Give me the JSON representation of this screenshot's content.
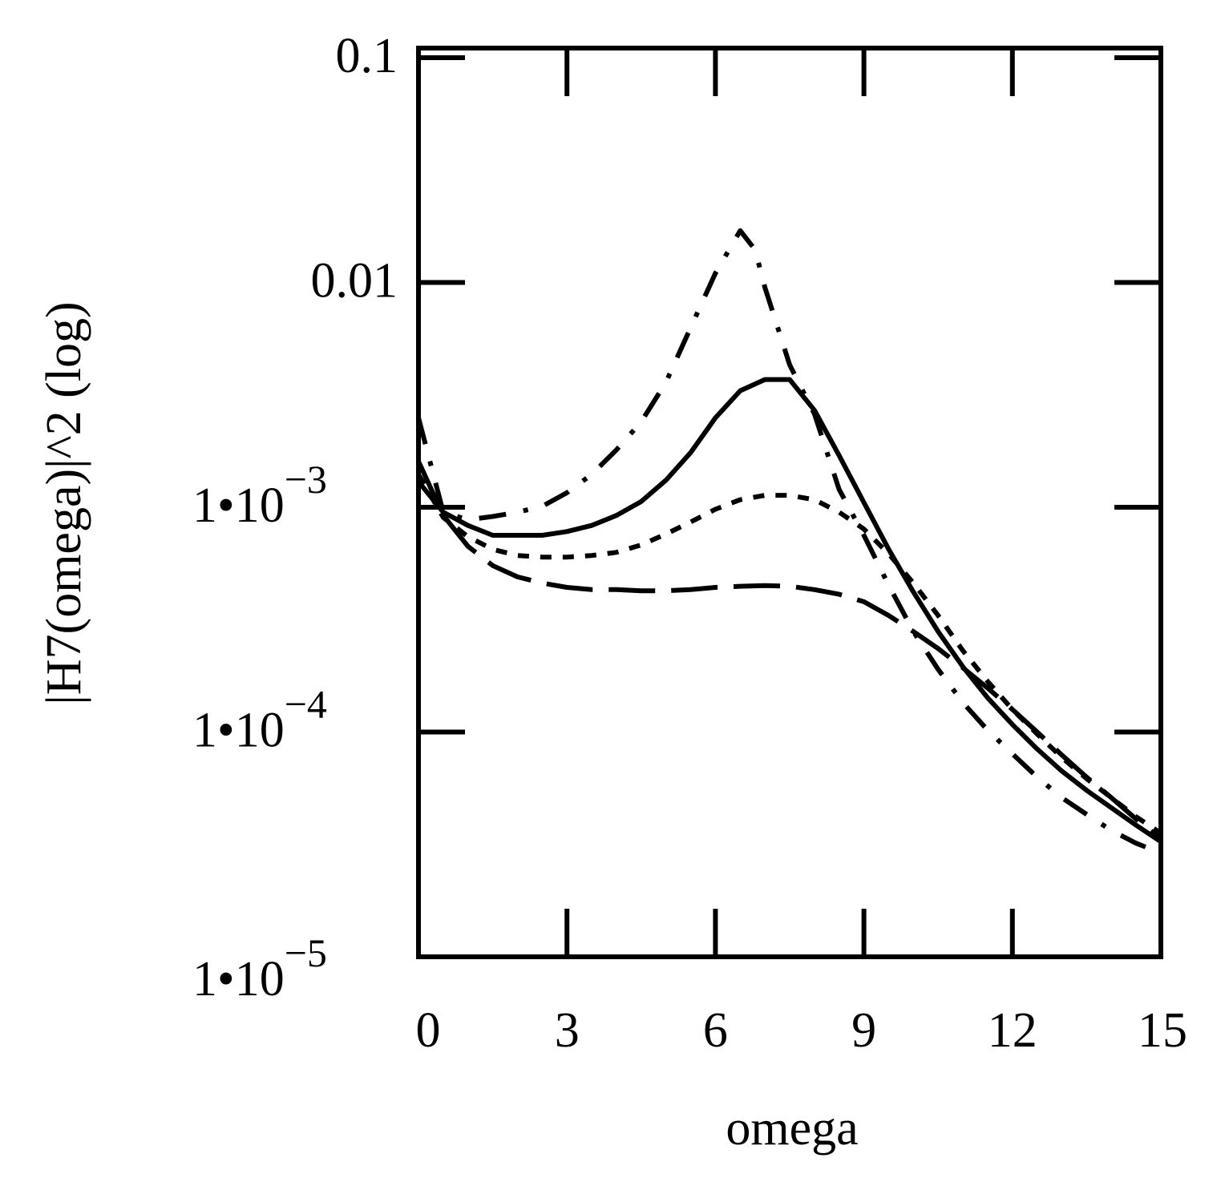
{
  "chart_data": {
    "type": "line",
    "title": "",
    "xlabel": "omega",
    "ylabel": "|H7(omega)|^2 (log)",
    "xlim": [
      0,
      15
    ],
    "ylim": [
      1e-05,
      0.1
    ],
    "yscale": "log",
    "grid": false,
    "legend": "none",
    "x_ticks": [
      {
        "value": 0,
        "label": "0"
      },
      {
        "value": 3,
        "label": "3"
      },
      {
        "value": 6,
        "label": "6"
      },
      {
        "value": 9,
        "label": "9"
      },
      {
        "value": 12,
        "label": "12"
      },
      {
        "value": 15,
        "label": "15"
      }
    ],
    "y_ticks": [
      {
        "value": 0.1,
        "label": "0.1"
      },
      {
        "value": 0.01,
        "label": "0.01"
      },
      {
        "value": 0.001,
        "mantissa": "1•10",
        "exponent": "−3"
      },
      {
        "value": 0.0001,
        "mantissa": "1•10",
        "exponent": "−4"
      },
      {
        "value": 1e-05,
        "mantissa": "1•10",
        "exponent": "−5"
      }
    ],
    "series": [
      {
        "name": "solid",
        "style": "solid",
        "x": [
          0,
          0.5,
          1.0,
          1.5,
          2.0,
          2.5,
          3.0,
          3.5,
          4.0,
          4.5,
          5.0,
          5.5,
          6.0,
          6.5,
          7.0,
          7.5,
          8.0,
          8.5,
          9.0,
          9.5,
          10.0,
          10.5,
          11.0,
          11.5,
          12.0,
          12.5,
          13.0,
          13.5,
          14.0,
          14.5,
          15.0
        ],
        "values": [
          0.0013,
          0.00095,
          0.00083,
          0.00075,
          0.00075,
          0.00075,
          0.00078,
          0.00083,
          0.00092,
          0.00106,
          0.00132,
          0.00175,
          0.0025,
          0.0033,
          0.0037,
          0.0037,
          0.0027,
          0.0017,
          0.00105,
          0.00065,
          0.00042,
          0.00028,
          0.000195,
          0.000142,
          0.000108,
          8.4e-05,
          6.7e-05,
          5.5e-05,
          4.6e-05,
          3.85e-05,
          3.25e-05
        ]
      },
      {
        "name": "dash-dot",
        "style": "dashdot",
        "x": [
          0,
          0.5,
          1.0,
          1.5,
          2.0,
          2.5,
          3.0,
          3.5,
          4.0,
          4.5,
          5.0,
          5.5,
          6.0,
          6.5,
          6.8,
          7.0,
          7.5,
          8.0,
          8.5,
          9.0,
          9.5,
          10.0,
          10.5,
          11.0,
          11.5,
          12.0,
          12.5,
          13.0,
          13.5,
          14.0,
          14.5,
          15.0
        ],
        "values": [
          0.0025,
          0.00095,
          0.00088,
          0.00091,
          0.00095,
          0.00101,
          0.00116,
          0.0014,
          0.0018,
          0.0024,
          0.0036,
          0.0063,
          0.011,
          0.017,
          0.014,
          0.0095,
          0.0043,
          0.0026,
          0.0012,
          0.00075,
          0.00045,
          0.00028,
          0.00019,
          0.000135,
          0.000102,
          8e-05,
          6.3e-05,
          5.1e-05,
          4.3e-05,
          3.65e-05,
          3.2e-05,
          2.9e-05
        ]
      },
      {
        "name": "short-dash",
        "style": "dotted",
        "x": [
          0,
          0.5,
          1.0,
          1.5,
          2.0,
          2.5,
          3.0,
          3.5,
          4.0,
          4.5,
          5.0,
          5.5,
          6.0,
          6.5,
          7.0,
          7.5,
          8.0,
          8.5,
          9.0,
          9.5,
          10.0,
          10.5,
          11.0,
          11.5,
          12.0,
          12.5,
          13.0,
          13.5,
          14.0,
          14.5,
          15.0
        ],
        "values": [
          0.0014,
          0.0009,
          0.00074,
          0.00065,
          0.00061,
          0.0006,
          0.0006,
          0.00061,
          0.00063,
          0.00068,
          0.00076,
          0.00086,
          0.00098,
          0.00108,
          0.00113,
          0.00113,
          0.00108,
          0.00095,
          0.0008,
          0.00062,
          0.00046,
          0.00033,
          0.00023,
          0.000168,
          0.000126,
          9.8e-05,
          7.7e-05,
          6.2e-05,
          5.1e-05,
          4.2e-05,
          3.55e-05
        ]
      },
      {
        "name": "long-dash",
        "style": "dashed",
        "x": [
          0,
          0.5,
          1.0,
          1.5,
          2.0,
          2.5,
          3.0,
          3.5,
          4.0,
          4.5,
          5.0,
          5.5,
          6.0,
          6.5,
          7.0,
          7.5,
          8.0,
          8.5,
          9.0,
          9.5,
          10.0,
          10.5,
          11.0,
          11.5,
          12.0,
          12.5,
          13.0,
          13.5,
          14.0,
          14.5,
          15.0
        ],
        "values": [
          0.0016,
          0.00092,
          0.00067,
          0.00055,
          0.00049,
          0.00046,
          0.00044,
          0.00043,
          0.00043,
          0.000425,
          0.000425,
          0.00043,
          0.00044,
          0.000445,
          0.000448,
          0.000445,
          0.00043,
          0.00041,
          0.00038,
          0.00033,
          0.00028,
          0.000235,
          0.000193,
          0.000157,
          0.000126,
          0.0001,
          7.9e-05,
          6.3e-05,
          5.1e-05,
          4.1e-05,
          3.35e-05
        ]
      }
    ]
  }
}
